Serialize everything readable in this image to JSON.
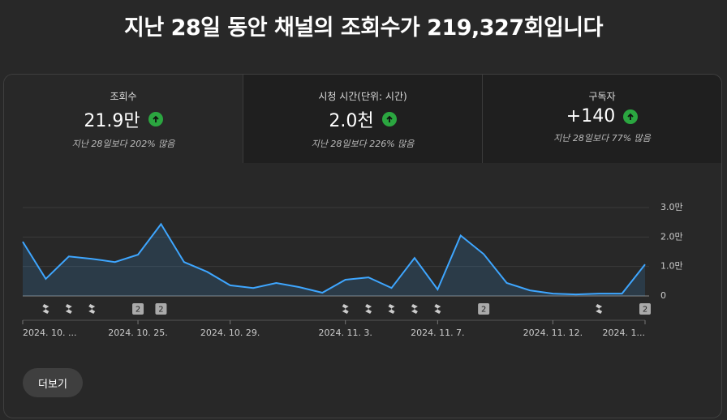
{
  "header": {
    "title": "지난 28일 동안 채널의 조회수가 219,327회입니다"
  },
  "metrics": [
    {
      "label": "조회수",
      "value": "21.9만",
      "change": "지난 28일보다 202% 많음"
    },
    {
      "label": "시청 시간(단위: 시간)",
      "value": "2.0천",
      "change": "지난 28일보다 226% 많음"
    },
    {
      "label": "구독자",
      "value": "+140",
      "change": "지난 28일보다 77% 많음"
    }
  ],
  "chart_data": {
    "type": "line",
    "categories": [
      "2024. 10. ...",
      null,
      null,
      null,
      null,
      "2024. 10. 25.",
      null,
      null,
      null,
      "2024. 10. 29.",
      null,
      null,
      null,
      null,
      "2024. 11. 3.",
      null,
      null,
      null,
      "2024. 11. 7.",
      null,
      null,
      null,
      null,
      "2024. 11. 12.",
      null,
      null,
      null,
      "2024. 1..."
    ],
    "series": [
      {
        "color": "#3ea6ff",
        "values": [
          18400,
          5800,
          13400,
          12600,
          11500,
          14000,
          24400,
          11500,
          8200,
          3600,
          2700,
          4400,
          3000,
          1100,
          5500,
          6300,
          2700,
          12900,
          2200,
          20500,
          14200,
          4400,
          1900,
          800,
          500,
          800,
          800,
          10700
        ]
      }
    ],
    "markers": [
      null,
      null,
      null,
      null,
      null,
      "2",
      "2",
      null,
      null,
      null,
      null,
      null,
      null,
      null,
      null,
      null,
      null,
      null,
      null,
      null,
      "2",
      null,
      null,
      null,
      null,
      null,
      null,
      "2"
    ],
    "ylim": [
      0,
      30000
    ],
    "yticks": [
      {
        "value": 0,
        "label": "0"
      },
      {
        "value": 10000,
        "label": "1.0만"
      },
      {
        "value": 20000,
        "label": "2.0만"
      },
      {
        "value": 30000,
        "label": "3.0만"
      }
    ],
    "grid": true
  },
  "button": {
    "label": "더보기"
  }
}
